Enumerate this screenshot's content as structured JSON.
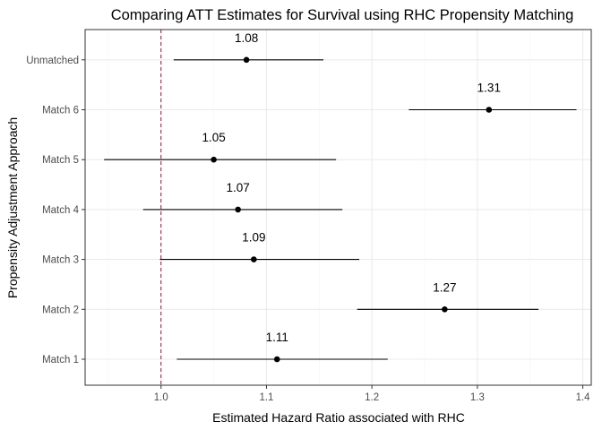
{
  "chart_data": {
    "type": "forest",
    "title": "Comparing ATT Estimates for Survival using RHC Propensity Matching",
    "xlabel": "Estimated Hazard Ratio associated with RHC",
    "ylabel": "Propensity Adjustment Approach",
    "xlim": [
      0.928,
      1.408
    ],
    "xticks": [
      "1.0",
      "1.1",
      "1.2",
      "1.3",
      "1.4"
    ],
    "xtick_values": [
      1.0,
      1.1,
      1.2,
      1.3,
      1.4
    ],
    "reference_line": {
      "x": 1.0,
      "style": "dashed",
      "color": "#8b1a4a"
    },
    "grid": true,
    "colors": {
      "panel_border": "#333333",
      "grid_major": "#ebebeb",
      "grid_minor": "#f5f5f5",
      "points": "#000000"
    },
    "categories": [
      "Match 1",
      "Match 2",
      "Match 3",
      "Match 4",
      "Match 5",
      "Match 6",
      "Unmatched"
    ],
    "estimates": [
      1.11,
      1.269,
      1.088,
      1.073,
      1.05,
      1.311,
      1.081
    ],
    "lower": [
      1.015,
      1.186,
      0.999,
      0.983,
      0.946,
      1.235,
      1.012
    ],
    "upper": [
      1.215,
      1.358,
      1.188,
      1.172,
      1.166,
      1.394,
      1.154
    ],
    "labels": [
      "1.11",
      "1.27",
      "1.09",
      "1.07",
      "1.05",
      "1.31",
      "1.08"
    ]
  }
}
